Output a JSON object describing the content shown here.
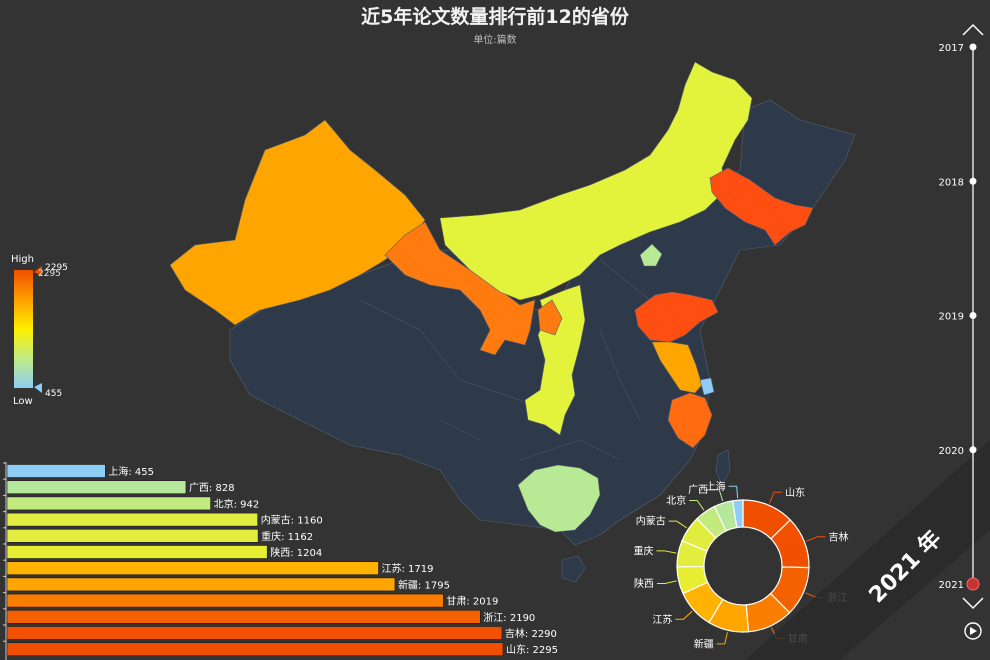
{
  "title": "近5年论文数量排行前12的省份",
  "subtitle": "单位:篇数",
  "visual_map": {
    "high_label": "High",
    "low_label": "Low",
    "max": 2295,
    "min": 455,
    "max_value_label": "2295",
    "min_value_label": "455",
    "colors": [
      "#f04f00",
      "#ff9e00",
      "#fff000",
      "#b8e994",
      "#8ecdf5"
    ]
  },
  "timeline": {
    "years": [
      "2017",
      "2018",
      "2019",
      "2020",
      "2021"
    ],
    "current": "2021",
    "banner": "2021 年"
  },
  "chart_data": {
    "type": "bar",
    "categories": [
      "上海",
      "广西",
      "北京",
      "内蒙古",
      "重庆",
      "陕西",
      "江苏",
      "新疆",
      "甘肃",
      "浙江",
      "吉林",
      "山东"
    ],
    "values": [
      455,
      828,
      942,
      1160,
      1162,
      1204,
      1719,
      1795,
      2019,
      2190,
      2290,
      2295
    ],
    "labels": [
      "上海: 455",
      "广西: 828",
      "北京: 942",
      "内蒙古: 1160",
      "重庆: 1162",
      "陕西: 1204",
      "江苏: 1719",
      "新疆: 1795",
      "甘肃: 2019",
      "浙江: 2190",
      "吉林: 2290",
      "山东: 2295"
    ],
    "donut_order": [
      "山东",
      "吉林",
      "浙江",
      "甘肃",
      "新疆",
      "江苏",
      "陕西",
      "重庆",
      "内蒙古",
      "北京",
      "广西",
      "上海"
    ],
    "xlim": [
      0,
      2295
    ]
  }
}
